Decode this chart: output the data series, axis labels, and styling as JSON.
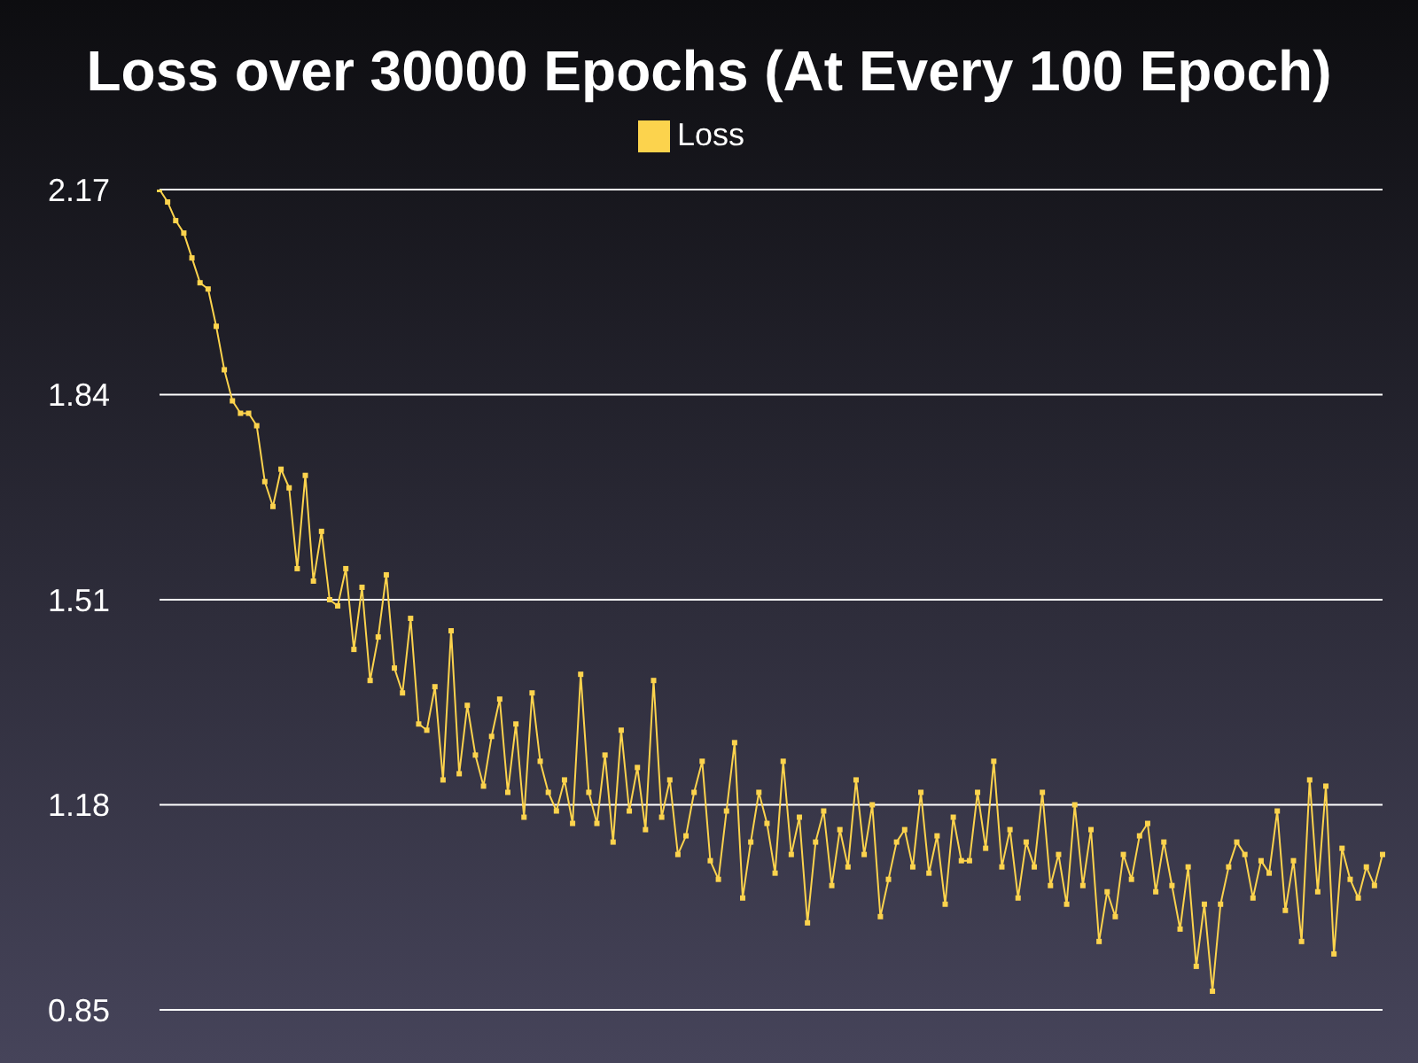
{
  "chart_data": {
    "type": "line",
    "title": "Loss over 30000 Epochs (At Every 100 Epoch)",
    "categories": [
      null,
      null,
      null,
      null,
      null,
      null,
      null,
      null,
      null,
      null,
      null,
      null,
      null,
      null,
      null,
      null,
      null,
      null,
      null,
      null,
      null,
      null,
      null,
      null,
      null,
      null,
      null,
      null,
      null,
      null,
      null,
      null,
      null,
      null,
      null,
      null,
      null,
      null,
      null,
      null,
      null,
      null,
      null,
      null,
      null,
      null,
      null,
      null,
      null,
      null,
      null,
      null,
      null,
      null,
      null,
      null,
      null,
      null,
      null,
      null,
      null,
      null,
      null,
      null,
      null,
      null,
      null,
      null,
      null,
      null,
      null,
      null,
      null,
      null,
      null,
      null,
      null,
      null,
      null,
      null,
      null,
      null,
      null,
      null,
      null,
      null,
      null,
      null,
      null,
      null,
      null,
      null,
      null,
      null,
      null,
      null,
      null,
      null,
      null,
      null,
      null,
      null,
      null,
      null,
      null,
      null,
      null,
      null,
      null,
      null,
      null,
      null,
      null,
      null,
      null,
      null,
      null,
      null,
      null,
      null,
      null,
      null,
      null,
      null,
      null,
      null,
      null,
      null,
      null,
      null,
      null,
      null,
      null,
      null,
      null,
      null,
      null,
      null,
      null,
      null,
      null,
      null,
      null,
      null,
      null,
      null,
      null,
      null,
      null,
      null,
      null,
      null
    ],
    "series": [
      {
        "name": "Loss",
        "color": "#fcd34d",
        "values": [
          2.17,
          2.15,
          2.12,
          2.1,
          2.06,
          2.02,
          2.01,
          1.95,
          1.88,
          1.83,
          1.81,
          1.81,
          1.79,
          1.7,
          1.66,
          1.72,
          1.69,
          1.56,
          1.71,
          1.54,
          1.62,
          1.51,
          1.5,
          1.56,
          1.43,
          1.53,
          1.38,
          1.45,
          1.55,
          1.4,
          1.36,
          1.48,
          1.31,
          1.3,
          1.37,
          1.22,
          1.46,
          1.23,
          1.34,
          1.26,
          1.21,
          1.29,
          1.35,
          1.2,
          1.31,
          1.16,
          1.36,
          1.25,
          1.2,
          1.17,
          1.22,
          1.15,
          1.39,
          1.2,
          1.15,
          1.26,
          1.12,
          1.3,
          1.17,
          1.24,
          1.14,
          1.38,
          1.16,
          1.22,
          1.1,
          1.13,
          1.2,
          1.25,
          1.09,
          1.06,
          1.17,
          1.28,
          1.03,
          1.12,
          1.2,
          1.15,
          1.07,
          1.25,
          1.1,
          1.16,
          0.99,
          1.12,
          1.17,
          1.05,
          1.14,
          1.08,
          1.22,
          1.1,
          1.18,
          1.0,
          1.06,
          1.12,
          1.14,
          1.08,
          1.2,
          1.07,
          1.13,
          1.02,
          1.16,
          1.09,
          1.09,
          1.2,
          1.11,
          1.25,
          1.08,
          1.14,
          1.03,
          1.12,
          1.08,
          1.2,
          1.05,
          1.1,
          1.02,
          1.18,
          1.05,
          1.14,
          0.96,
          1.04,
          1.0,
          1.1,
          1.06,
          1.13,
          1.15,
          1.04,
          1.12,
          1.05,
          0.98,
          1.08,
          0.92,
          1.02,
          0.88,
          1.02,
          1.08,
          1.12,
          1.1,
          1.03,
          1.09,
          1.07,
          1.17,
          1.01,
          1.09,
          0.96,
          1.22,
          1.04,
          1.21,
          0.94,
          1.11,
          1.06,
          1.03,
          1.08,
          1.05,
          1.1
        ]
      }
    ],
    "ylim": [
      0.85,
      2.17
    ],
    "yticks": [
      0.85,
      1.18,
      1.51,
      1.84,
      2.17
    ],
    "grid": "y",
    "legend": "top",
    "marker": "square",
    "line_style": "solid"
  }
}
